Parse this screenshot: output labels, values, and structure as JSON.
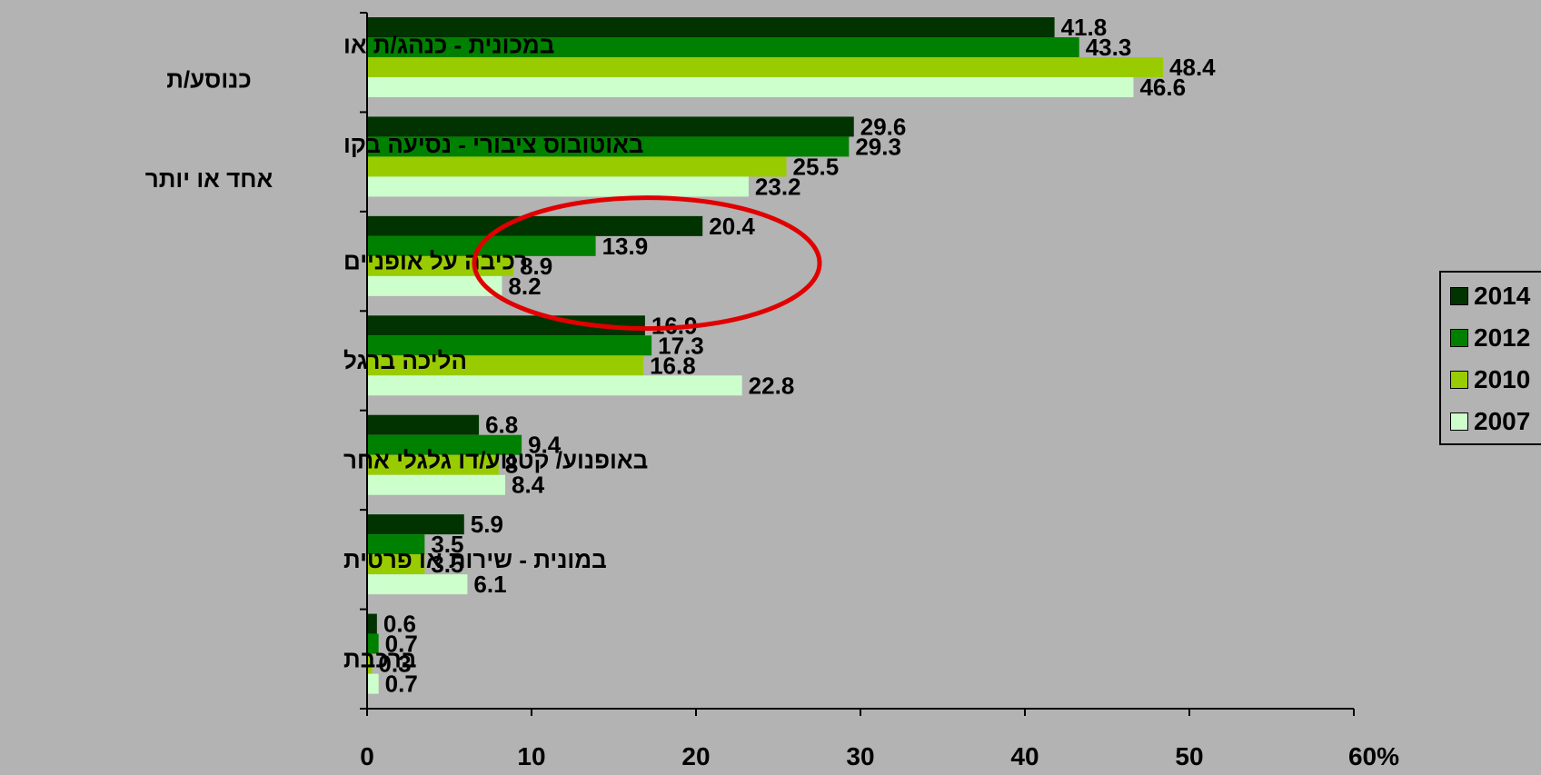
{
  "chart_data": {
    "type": "bar",
    "orientation": "horizontal",
    "categories": [
      [
        "במכונית - כנהג/ת או",
        "כנוסע/ת"
      ],
      [
        "באוטובוס ציבורי - נסיעה בקו",
        "אחד או יותר"
      ],
      [
        "רכיבה על אופניים"
      ],
      [
        "הליכה ברגל"
      ],
      [
        "באופנוע/ קטנוע/דו גלגלי אחר"
      ],
      [
        "במונית - שירות או פרטית"
      ],
      [
        "ברכבת"
      ]
    ],
    "series": [
      {
        "name": "2014",
        "color": "#003300",
        "values": [
          41.8,
          29.6,
          20.4,
          16.9,
          6.8,
          5.9,
          0.6
        ],
        "labels": [
          "41.8",
          "29.6",
          "20.4",
          "16.9",
          "6.8",
          "5.9",
          "0.6"
        ]
      },
      {
        "name": "2012",
        "color": "#008000",
        "values": [
          43.3,
          29.3,
          13.9,
          17.3,
          9.4,
          3.5,
          0.7
        ],
        "labels": [
          "43.3",
          "29.3",
          "13.9",
          "17.3",
          "9.4",
          "3.5",
          "0.7"
        ]
      },
      {
        "name": "2010",
        "color": "#99cc00",
        "values": [
          48.4,
          25.5,
          8.9,
          16.8,
          8,
          3.5,
          0.3
        ],
        "labels": [
          "48.4",
          "25.5",
          "8.9",
          "16.8",
          "8",
          "3.5",
          "0.3"
        ]
      },
      {
        "name": "2007",
        "color": "#ccffcc",
        "values": [
          46.6,
          23.2,
          8.2,
          22.8,
          8.4,
          6.1,
          0.7
        ],
        "labels": [
          "46.6",
          "23.2",
          "8.2",
          "22.8",
          "8.4",
          "6.1",
          "0.7"
        ]
      }
    ],
    "xlim": [
      0,
      60
    ],
    "xticks": [
      "0",
      "10",
      "20",
      "30",
      "40",
      "50",
      "60%"
    ],
    "grid": false,
    "legend_position": "right",
    "annotation": {
      "shape": "ellipse",
      "color": "#e00000",
      "around": "רכיבה על אופניים"
    }
  }
}
